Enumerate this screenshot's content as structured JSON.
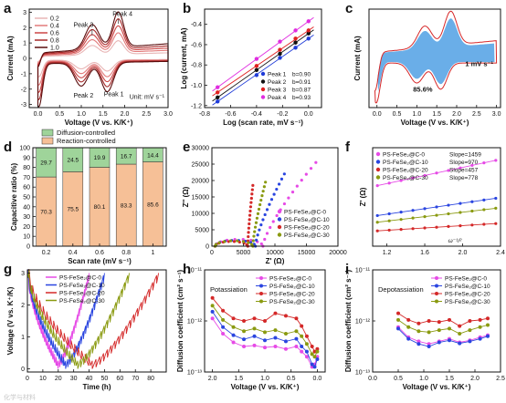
{
  "chart_data": [
    {
      "panel": "a",
      "type": "line",
      "xlabel": "Voltage (V vs. K/K⁺)",
      "ylabel": "Current (mA)",
      "xlim": [
        -0.2,
        3.0
      ],
      "ylim": [
        -3.2,
        3.2
      ],
      "xticks": [
        "0.0",
        "0.5",
        "1.0",
        "1.5",
        "2.0",
        "2.5",
        "3.0"
      ],
      "yticks": [
        "3",
        "2",
        "1",
        "0",
        "-1",
        "-2",
        "-3"
      ],
      "legend_position": "top-left",
      "series": [
        {
          "name": "0.2",
          "color": "#e8b5b5",
          "scale": 0.38
        },
        {
          "name": "0.4",
          "color": "#e27a7a",
          "scale": 0.55
        },
        {
          "name": "0.6",
          "color": "#cc4646",
          "scale": 0.7
        },
        {
          "name": "0.8",
          "color": "#a52828",
          "scale": 0.85
        },
        {
          "name": "1.0",
          "color": "#5a0d0d",
          "scale": 1.0
        }
      ],
      "annotations": [
        "Peak 4",
        "Peak 3",
        "Peak 2",
        "Peak 1",
        "Unit: mV s⁻¹"
      ]
    },
    {
      "panel": "b",
      "type": "scatter",
      "xlabel": "Log (scan rate, mV s⁻¹)",
      "ylabel": "Log (current, mA)",
      "xlim": [
        -0.8,
        0.1
      ],
      "ylim": [
        -1.22,
        -0.25
      ],
      "xticks": [
        "-0.8",
        "-0.6",
        "-0.4",
        "-0.2",
        "0.0"
      ],
      "yticks": [
        "-0.4",
        "-0.6",
        "-0.8",
        "-1.0",
        "-1.2"
      ],
      "x": [
        -0.7,
        -0.4,
        -0.22,
        -0.1,
        0.0
      ],
      "legend_position": "bottom-right",
      "series": [
        {
          "name": "Peak 1",
          "label": "b=0.90",
          "color": "#1f3bd8",
          "values": [
            -1.16,
            -0.9,
            -0.73,
            -0.63,
            -0.54
          ]
        },
        {
          "name": "Peak 2",
          "label": "b=0.91",
          "color": "#111111",
          "values": [
            -1.12,
            -0.85,
            -0.69,
            -0.58,
            -0.49
          ]
        },
        {
          "name": "Peak 3",
          "label": "b=0.87",
          "color": "#e02020",
          "values": [
            -1.07,
            -0.81,
            -0.65,
            -0.54,
            -0.46
          ]
        },
        {
          "name": "Peak 4",
          "label": "b=0.93",
          "color": "#e02de0",
          "values": [
            -1.02,
            -0.74,
            -0.57,
            -0.46,
            -0.37
          ]
        }
      ]
    },
    {
      "panel": "c",
      "type": "area",
      "xlabel": "Voltage (V vs. K/K⁺)",
      "ylabel": "Current (mA)",
      "xlim": [
        -0.2,
        3.1
      ],
      "xticks": [
        "0.0",
        "0.5",
        "1.0",
        "1.5",
        "2.0",
        "2.5",
        "3.0"
      ],
      "annotations": [
        "1 mV s⁻¹",
        "85.6%"
      ],
      "fill_color": "#6aaee8",
      "line_color": "#d62728"
    },
    {
      "panel": "d",
      "type": "bar",
      "xlabel": "Scan rate (mV s⁻¹)",
      "ylabel": "Capacitive ratio (%)",
      "ylim": [
        0,
        100
      ],
      "yticks": [
        "0",
        "10",
        "20",
        "30",
        "40",
        "50",
        "60",
        "70",
        "80",
        "90",
        "100"
      ],
      "categories": [
        "0.2",
        "0.4",
        "0.6",
        "0.8",
        "1"
      ],
      "legend_position": "top",
      "series": [
        {
          "name": "Reaction-controlled",
          "color": "#f6c097",
          "values": [
            70.3,
            75.5,
            80.1,
            83.3,
            85.6
          ]
        },
        {
          "name": "Diffusion-controlled",
          "color": "#9fd49a",
          "values": [
            29.7,
            24.5,
            19.9,
            16.7,
            14.4
          ]
        }
      ]
    },
    {
      "panel": "e",
      "type": "scatter",
      "xlabel": "Z' (Ω)",
      "ylabel": "Z'' (Ω)",
      "xlim": [
        0,
        20000
      ],
      "ylim": [
        0,
        30000
      ],
      "xticks": [
        "0",
        "5000",
        "10000",
        "15000",
        "20000"
      ],
      "yticks": [
        "30000",
        "25000",
        "20000",
        "15000",
        "10000",
        "5000",
        "0"
      ],
      "legend_position": "right",
      "series": [
        {
          "name": "PS-FeSe₂@C-0",
          "color": "#e64ae6",
          "semicircle": 3800,
          "end": [
            16500,
            25500
          ]
        },
        {
          "name": "PS-FeSe₂@C-10",
          "color": "#2a45e0",
          "semicircle": 3200,
          "end": [
            11500,
            22000
          ]
        },
        {
          "name": "PS-FeSe₂@C-20",
          "color": "#d42828",
          "semicircle": 2600,
          "end": [
            6500,
            18500
          ]
        },
        {
          "name": "PS-FeSe₂@C-30",
          "color": "#8a9a10",
          "semicircle": 3000,
          "end": [
            8500,
            19500
          ]
        }
      ]
    },
    {
      "panel": "f",
      "type": "scatter",
      "xlabel": "ω⁻¹/²",
      "ylabel": "Z' (Ω)",
      "xlim": [
        1.05,
        2.4
      ],
      "ylim": [
        1800,
        9200
      ],
      "xticks": [
        "1.2",
        "1.6",
        "2.0",
        "2.4"
      ],
      "legend_position": "top-left",
      "series": [
        {
          "name": "PS-FeSe₂@C-0",
          "label": "Slope=1459",
          "color": "#e64ae6",
          "values": [
            6350,
            8250
          ]
        },
        {
          "name": "PS-FeSe₂@C-10",
          "label": "Slope=970",
          "color": "#2a45e0",
          "values": [
            4100,
            5400
          ]
        },
        {
          "name": "PS-FeSe₂@C-20",
          "label": "Slope=457",
          "color": "#d42828",
          "values": [
            2950,
            3500
          ]
        },
        {
          "name": "PS-FeSe₂@C-30",
          "label": "Slope=778",
          "color": "#8a9a10",
          "values": [
            3600,
            4650
          ]
        }
      ]
    },
    {
      "panel": "g",
      "type": "line",
      "xlabel": "Time (h)",
      "ylabel": "Voltage (V vs. K⁺/K)",
      "xlim": [
        0,
        90
      ],
      "ylim": [
        -0.1,
        3.1
      ],
      "xticks": [
        "0",
        "10",
        "20",
        "30",
        "40",
        "50",
        "60",
        "70",
        "80"
      ],
      "yticks": [
        "0",
        "1",
        "2",
        "3"
      ],
      "legend_position": "top",
      "series": [
        {
          "name": "PS-FeSe₂@C-0",
          "color": "#e64ae6",
          "t_end": 40
        },
        {
          "name": "PS-FeSe₂@C-10",
          "color": "#2a45e0",
          "t_end": 50
        },
        {
          "name": "PS-FeSe₂@C-20",
          "color": "#d42828",
          "t_end": 85
        },
        {
          "name": "PS-FeSe₂@C-30",
          "color": "#8a9a10",
          "t_end": 66
        }
      ]
    },
    {
      "panel": "h",
      "type": "line",
      "title": "Potassiation",
      "xlabel": "Voltage (V vs. K/K⁺)",
      "ylabel": "Diffusion coefficient (cm² s⁻¹)",
      "xlim": [
        2.15,
        -0.15
      ],
      "ylim_log": [
        -13,
        -11
      ],
      "xticks": [
        "2.0",
        "1.5",
        "1.0",
        "0.5",
        "0.0"
      ],
      "yticks": [
        "10⁻¹¹",
        "10⁻¹²",
        "10⁻¹³"
      ],
      "legend_position": "top-right",
      "x": [
        2.0,
        1.8,
        1.6,
        1.4,
        1.2,
        1.0,
        0.8,
        0.6,
        0.4,
        0.3,
        0.2,
        0.1,
        0.05,
        0.0
      ],
      "series": [
        {
          "name": "PS-FeSe₂@C-0",
          "color": "#e64ae6",
          "values": [
            -11.95,
            -12.25,
            -12.42,
            -12.5,
            -12.48,
            -12.52,
            -12.5,
            -12.55,
            -12.5,
            -12.6,
            -12.7,
            -12.9,
            -12.85,
            -12.7
          ]
        },
        {
          "name": "PS-FeSe₂@C-10",
          "color": "#2a45e0",
          "values": [
            -11.82,
            -12.12,
            -12.28,
            -12.36,
            -12.3,
            -12.38,
            -12.33,
            -12.4,
            -12.35,
            -12.5,
            -12.6,
            -12.85,
            -12.9,
            -12.75
          ]
        },
        {
          "name": "PS-FeSe₂@C-20",
          "color": "#d42828",
          "values": [
            -11.55,
            -11.8,
            -11.95,
            -12.0,
            -11.95,
            -12.0,
            -11.85,
            -11.9,
            -11.95,
            -12.1,
            -12.3,
            -12.5,
            -12.6,
            -12.55
          ]
        },
        {
          "name": "PS-FeSe₂@C-30",
          "color": "#8a9a10",
          "values": [
            -11.7,
            -11.98,
            -12.12,
            -12.2,
            -12.15,
            -12.22,
            -12.18,
            -12.25,
            -12.2,
            -12.3,
            -12.45,
            -12.65,
            -12.7,
            -12.6
          ]
        }
      ]
    },
    {
      "panel": "i",
      "type": "line",
      "title": "Depotassiation",
      "xlabel": "Voltage (V vs. K/K⁺)",
      "ylabel": "Diffusion coefficient (cm² s⁻¹)",
      "xlim": [
        0,
        2.5
      ],
      "ylim_log": [
        -13,
        -11
      ],
      "xticks": [
        "0.0",
        "0.5",
        "1.0",
        "1.5",
        "2.0",
        "2.5"
      ],
      "yticks": [
        "10⁻¹¹",
        "10⁻¹²",
        "10⁻¹³"
      ],
      "legend_position": "top-right",
      "x": [
        0.5,
        0.7,
        0.9,
        1.1,
        1.3,
        1.5,
        1.7,
        1.9,
        2.1,
        2.25
      ],
      "series": [
        {
          "name": "PS-FeSe₂@C-0",
          "color": "#e64ae6",
          "values": [
            -12.12,
            -12.32,
            -12.4,
            -12.45,
            -12.4,
            -12.35,
            -12.42,
            -12.38,
            -12.32,
            -12.28
          ]
        },
        {
          "name": "PS-FeSe₂@C-10",
          "color": "#2a45e0",
          "values": [
            -12.15,
            -12.35,
            -12.45,
            -12.5,
            -12.42,
            -12.38,
            -12.44,
            -12.4,
            -12.35,
            -12.3
          ]
        },
        {
          "name": "PS-FeSe₂@C-20",
          "color": "#d42828",
          "values": [
            -11.85,
            -11.98,
            -12.05,
            -12.0,
            -12.02,
            -11.98,
            -12.1,
            -12.0,
            -11.98,
            -11.95
          ]
        },
        {
          "name": "PS-FeSe₂@C-30",
          "color": "#8a9a10",
          "values": [
            -11.98,
            -12.12,
            -12.2,
            -12.22,
            -12.18,
            -12.15,
            -12.25,
            -12.18,
            -12.12,
            -12.08
          ]
        }
      ]
    }
  ],
  "panel_letters": [
    "a",
    "b",
    "c",
    "d",
    "e",
    "f",
    "g",
    "h",
    "i"
  ],
  "watermark": "化学与材料"
}
